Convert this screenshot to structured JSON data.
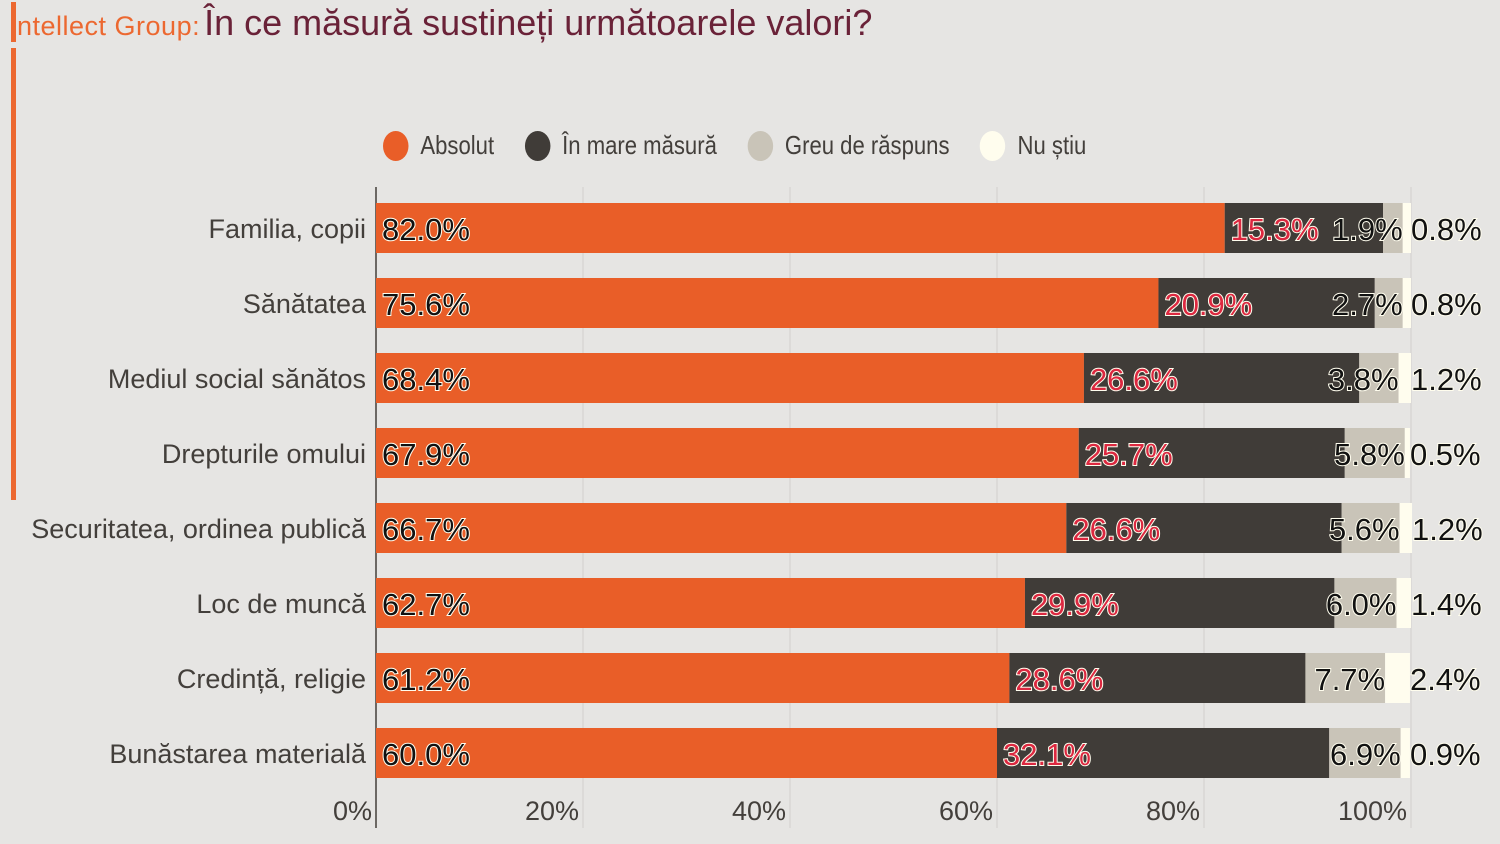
{
  "header": {
    "brand": "ntellect Group:",
    "title": "În ce măsură sustineți următoarele valori?"
  },
  "chart_data": {
    "type": "bar",
    "orientation": "horizontal",
    "stacked": true,
    "title": "În ce măsură sustineți următoarele valori?",
    "categories": [
      "Familia, copii",
      "Sănătatea",
      "Mediul social sănătos",
      "Drepturile omului",
      "Securitatea, ordinea publică",
      "Loc de muncă",
      "Credință, religie",
      "Bunăstarea materială"
    ],
    "series": [
      {
        "name": "Absolut",
        "color": "#E95E28",
        "label_color": "#111111",
        "values": [
          82.0,
          75.6,
          68.4,
          67.9,
          66.7,
          62.7,
          61.2,
          60.0
        ]
      },
      {
        "name": "În mare măsură",
        "color": "#403C38",
        "label_color": "#DC2840",
        "values": [
          15.3,
          20.9,
          26.6,
          25.7,
          26.6,
          29.9,
          28.6,
          32.1
        ]
      },
      {
        "name": "Greu de răspuns",
        "color": "#C9C4B8",
        "label_color": "#111111",
        "values": [
          1.9,
          2.7,
          3.8,
          5.8,
          5.6,
          6.0,
          7.7,
          6.9
        ]
      },
      {
        "name": "Nu știu",
        "color": "#FFFDEE",
        "label_color": "#111111",
        "values": [
          0.8,
          0.8,
          1.2,
          0.5,
          1.2,
          1.4,
          2.4,
          0.9
        ]
      }
    ],
    "xlim": [
      0,
      100
    ],
    "xticks": [
      "0%",
      "20%",
      "40%",
      "60%",
      "80%",
      "100%"
    ],
    "grid": true,
    "legend": "top"
  }
}
